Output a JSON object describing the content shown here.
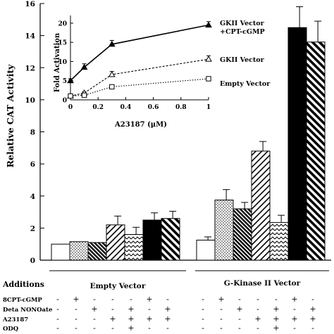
{
  "chart_data": [
    {
      "type": "bar",
      "ylabel": "Relative CAT Activity",
      "ylim": [
        0,
        16
      ],
      "yticks": [
        0,
        2,
        4,
        6,
        8,
        10,
        12,
        14,
        16
      ],
      "groups": [
        {
          "label": "Empty Vector",
          "values": [
            1.0,
            1.15,
            1.1,
            2.2,
            1.6,
            2.5,
            2.6
          ],
          "errors": [
            0,
            0,
            0,
            0.55,
            0.45,
            0.45,
            0.45
          ]
        },
        {
          "label": "G-Kinase II Vector",
          "values": [
            1.25,
            3.75,
            3.2,
            6.8,
            2.35,
            14.5,
            13.6
          ],
          "errors": [
            0.2,
            0.65,
            0.4,
            0.6,
            0.45,
            1.3,
            1.3
          ]
        }
      ],
      "treatments": [
        {
          "additions": {
            "8CPT-cGMP": "-",
            "Deta NONOate": "-",
            "A23187": "-",
            "ODQ": "-"
          }
        },
        {
          "additions": {
            "8CPT-cGMP": "+",
            "Deta NONOate": "-",
            "A23187": "-",
            "ODQ": "-"
          }
        },
        {
          "additions": {
            "8CPT-cGMP": "-",
            "Deta NONOate": "+",
            "A23187": "-",
            "ODQ": "-"
          }
        },
        {
          "additions": {
            "8CPT-cGMP": "-",
            "Deta NONOate": "-",
            "A23187": "+",
            "ODQ": "-"
          }
        },
        {
          "additions": {
            "8CPT-cGMP": "-",
            "Deta NONOate": "+",
            "A23187": "+",
            "ODQ": "+"
          }
        },
        {
          "additions": {
            "8CPT-cGMP": "+",
            "Deta NONOate": "-",
            "A23187": "+",
            "ODQ": "-"
          }
        },
        {
          "additions": {
            "8CPT-cGMP": "-",
            "Deta NONOate": "+",
            "A23187": "+",
            "ODQ": "-"
          }
        }
      ],
      "additions_title": "Additions",
      "addition_rows": [
        "8CPT-cGMP",
        "Deta NONOate",
        "A23187",
        "ODQ"
      ],
      "grid": false
    },
    {
      "type": "line",
      "xlabel": "A23187   (μM)",
      "ylabel": "Fold Activation",
      "xlim": [
        0,
        1
      ],
      "ylim": [
        0,
        22
      ],
      "xticks": [
        "0",
        "0.2",
        "0.4",
        "0.6",
        "0.8",
        "1"
      ],
      "yticks": [
        "0",
        "5",
        "10",
        "15",
        "20"
      ],
      "series": [
        {
          "name": "GKII Vector\n+CPT-cGMP",
          "marker": "filled-triangle",
          "line": "solid",
          "x": [
            0,
            0.1,
            0.3,
            1
          ],
          "y": [
            5.0,
            8.5,
            14.5,
            19.5
          ],
          "err": [
            0.5,
            0.9,
            1.0,
            0.9
          ]
        },
        {
          "name": "GKII Vector",
          "marker": "open-triangle",
          "line": "dashed",
          "x": [
            0,
            0.1,
            0.3,
            1
          ],
          "y": [
            1.0,
            1.8,
            6.6,
            10.6
          ],
          "err": [
            0.2,
            0.3,
            0.8,
            0.9
          ]
        },
        {
          "name": "Empty Vector",
          "marker": "open-square",
          "line": "dotted",
          "x": [
            0,
            0.1,
            0.3,
            1
          ],
          "y": [
            1.0,
            1.2,
            3.4,
            5.5
          ],
          "err": [
            0.1,
            0.2,
            0.3,
            0.3
          ]
        }
      ],
      "grid": false
    }
  ]
}
